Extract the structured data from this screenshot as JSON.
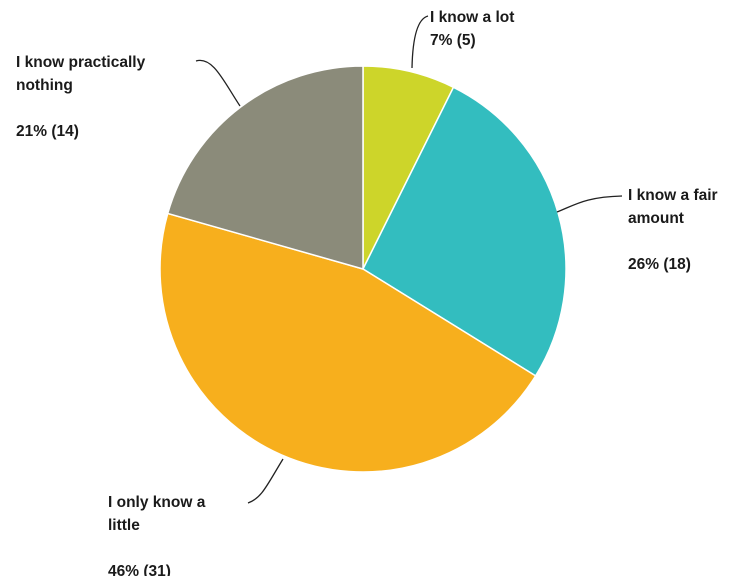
{
  "chart_data": {
    "type": "pie",
    "start_angle_deg": 0,
    "direction": "clockwise",
    "slices": [
      {
        "name": "I know a lot",
        "value": 5,
        "percent": 7,
        "color": "#CDD52A",
        "label_lines": [
          "I know a lot",
          "7% (5)"
        ]
      },
      {
        "name": "I know a fair amount",
        "value": 18,
        "percent": 26,
        "color": "#33BDBF",
        "label_lines": [
          "I know a fair",
          "amount",
          "",
          "26% (18)"
        ]
      },
      {
        "name": "I only know a little",
        "value": 31,
        "percent": 46,
        "color": "#F7AF1D",
        "label_lines": [
          "I only know a",
          "little",
          "",
          "46% (31)"
        ]
      },
      {
        "name": "I know practically nothing",
        "value": 14,
        "percent": 21,
        "color": "#8B8B7A",
        "label_lines": [
          "I know practically",
          "nothing",
          "",
          "21% (14)"
        ]
      }
    ]
  }
}
